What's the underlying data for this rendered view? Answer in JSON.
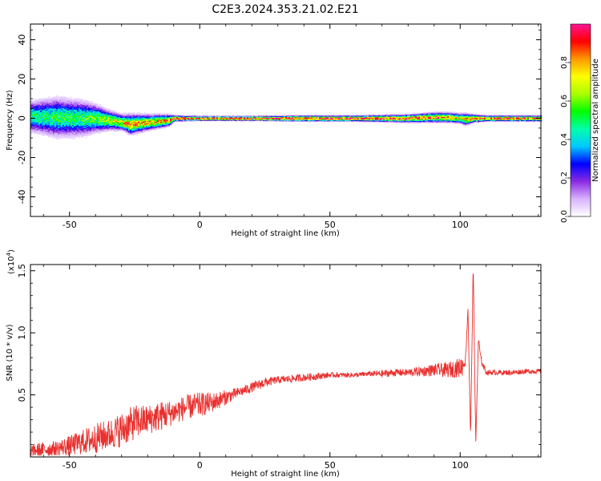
{
  "page_title": "C2E3.2024.353.21.02.E21",
  "chart_data": [
    {
      "type": "heatmap",
      "title": "C2E3.2024.353.21.02.E21",
      "xlabel": "Height of straight line (km)",
      "ylabel": "Frequency (Hz)",
      "xlim": [
        -65,
        131
      ],
      "ylim": [
        -50,
        48
      ],
      "x_ticks": [
        -50,
        0,
        50,
        100
      ],
      "x_tick_labels": [
        "-50",
        "0",
        "50",
        "100"
      ],
      "y_ticks": [
        -40,
        -20,
        0,
        20,
        40
      ],
      "y_tick_labels": [
        "-40",
        "-20",
        "0",
        "20",
        "40"
      ],
      "grid": false,
      "colorbar": {
        "label": "Normalized spectral amplitude",
        "range": [
          0,
          1
        ],
        "ticks": [
          0.0,
          0.2,
          0.4,
          0.6,
          0.8
        ],
        "tick_labels": [
          "0.0",
          "0.2",
          "0.4",
          "0.6",
          "0.8"
        ],
        "colormap": [
          "#ffffff",
          "#d8b3ff",
          "#8a2be2",
          "#0000ff",
          "#00c8ff",
          "#00ffaa",
          "#00ff00",
          "#aaff00",
          "#ffff00",
          "#ff9900",
          "#ff0000",
          "#ff1493"
        ]
      },
      "band": {
        "x": [
          -65,
          -55,
          -45,
          -40,
          -35,
          -30,
          -27,
          -20,
          -12,
          -10,
          0,
          20,
          40,
          60,
          80,
          90,
          95,
          100,
          102,
          105,
          110,
          120,
          131
        ],
        "center_freq": [
          1,
          0.5,
          0,
          0,
          -1,
          -2,
          -3,
          -2,
          -1,
          0,
          0,
          0,
          0,
          0,
          0,
          0.5,
          0.5,
          0,
          -0.5,
          0,
          0,
          0,
          0
        ],
        "spread_hz": [
          8,
          10,
          9,
          7,
          5,
          4,
          5,
          4,
          3,
          1.5,
          1.2,
          1.2,
          1.5,
          1.5,
          2,
          2.5,
          2.5,
          2.5,
          3,
          2,
          1.5,
          1.5,
          1.5
        ],
        "peak_amplitude": [
          0.5,
          0.55,
          0.55,
          0.6,
          0.7,
          0.75,
          0.9,
          0.8,
          0.85,
          0.95,
          1.0,
          1.0,
          1.0,
          1.0,
          0.95,
          0.9,
          0.85,
          0.8,
          0.85,
          0.9,
          0.95,
          0.95,
          0.95
        ]
      }
    },
    {
      "type": "line",
      "xlabel": "Height of straight line (km)",
      "ylabel": "SNR (10 * v/v)",
      "y_multiplier_label": "(x10",
      "y_multiplier_exponent": "4",
      "y_multiplier_close": ")",
      "xlim": [
        -65,
        131
      ],
      "ylim": [
        0,
        1.55
      ],
      "x_ticks": [
        -50,
        0,
        50,
        100
      ],
      "x_tick_labels": [
        "-50",
        "0",
        "50",
        "100"
      ],
      "y_ticks": [
        0.5,
        1.0,
        1.5
      ],
      "y_tick_labels": [
        "0.5",
        "1.0",
        "1.5"
      ],
      "grid": false,
      "series": [
        {
          "color": "#e8302e",
          "x": [
            -65,
            -60,
            -55,
            -50,
            -45,
            -40,
            -35,
            -30,
            -25,
            -20,
            -15,
            -10,
            -5,
            0,
            5,
            10,
            15,
            20,
            25,
            30,
            35,
            40,
            45,
            50,
            55,
            60,
            65,
            70,
            75,
            80,
            85,
            90,
            95,
            100,
            102,
            103,
            104,
            105,
            106,
            107,
            108,
            110,
            115,
            120,
            125,
            131
          ],
          "y": [
            0.05,
            0.06,
            0.07,
            0.09,
            0.12,
            0.15,
            0.18,
            0.22,
            0.28,
            0.3,
            0.33,
            0.36,
            0.4,
            0.42,
            0.44,
            0.48,
            0.52,
            0.56,
            0.6,
            0.62,
            0.63,
            0.64,
            0.65,
            0.66,
            0.66,
            0.66,
            0.67,
            0.67,
            0.68,
            0.68,
            0.69,
            0.7,
            0.7,
            0.72,
            0.76,
            1.2,
            0.15,
            1.55,
            0.1,
            0.95,
            0.78,
            0.68,
            0.68,
            0.68,
            0.69,
            0.69
          ],
          "noise": [
            0.05,
            0.06,
            0.06,
            0.08,
            0.1,
            0.12,
            0.12,
            0.14,
            0.14,
            0.12,
            0.12,
            0.1,
            0.1,
            0.1,
            0.08,
            0.06,
            0.04,
            0.04,
            0.04,
            0.03,
            0.03,
            0.03,
            0.03,
            0.02,
            0.02,
            0.02,
            0.02,
            0.03,
            0.03,
            0.03,
            0.04,
            0.05,
            0.06,
            0.08,
            0.1,
            0.1,
            0.1,
            0.1,
            0.1,
            0.05,
            0.03,
            0.02,
            0.02,
            0.02,
            0.02,
            0.02
          ]
        }
      ]
    }
  ]
}
